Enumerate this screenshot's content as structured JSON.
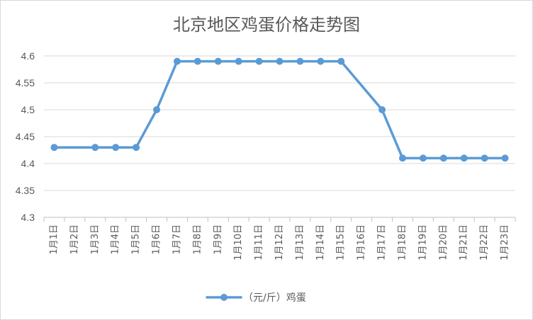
{
  "chart_data": {
    "type": "line",
    "title": "北京地区鸡蛋价格走势图",
    "xlabel": "",
    "ylabel": "",
    "ylim": [
      4.3,
      4.6
    ],
    "y_ticks": [
      "4.3",
      "4.35",
      "4.4",
      "4.45",
      "4.5",
      "4.55",
      "4.6"
    ],
    "categories": [
      "1月1日",
      "1月2日",
      "1月3日",
      "1月4日",
      "1月5日",
      "1月6日",
      "1月7日",
      "1月8日",
      "1月9日",
      "1月10日",
      "1月11日",
      "1月12日",
      "1月13日",
      "1月14日",
      "1月15日",
      "1月16日",
      "1月17日",
      "1月18日",
      "1月19日",
      "1月20日",
      "1月21日",
      "1月22日",
      "1月23日"
    ],
    "series": [
      {
        "name": "（元/斤）鸡蛋",
        "color": "#5b9bd5",
        "values": [
          4.43,
          null,
          4.43,
          4.43,
          4.43,
          4.5,
          4.59,
          4.59,
          4.59,
          4.59,
          4.59,
          4.59,
          4.59,
          4.59,
          4.59,
          null,
          4.5,
          4.41,
          4.41,
          4.41,
          4.41,
          4.41,
          4.41
        ]
      }
    ],
    "grid": true,
    "legend": "bottom"
  }
}
